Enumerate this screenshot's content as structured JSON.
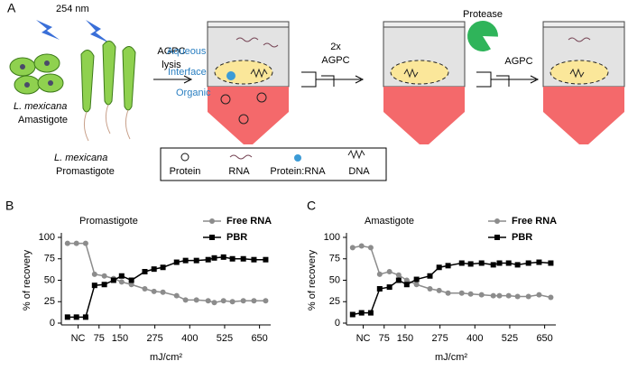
{
  "panels": {
    "a": "A",
    "b": "B",
    "c": "C"
  },
  "diagram": {
    "wavelength": "254 nm",
    "species": "L. mexicana",
    "amastigote": "Amastigote",
    "promastigote": "Promastigote",
    "lysis_1": "AGPC",
    "lysis_2": "lysis",
    "aqueous": "Aqueous",
    "interface": "Interface",
    "organic": "Organic",
    "wash_1": "2x",
    "wash_2": "AGPC",
    "protease": "Protease",
    "final": "AGPC",
    "legend": {
      "protein": "Protein",
      "rna": "RNA",
      "protein_rna": "Protein:RNA",
      "dna": "DNA"
    }
  },
  "chart_data": [
    {
      "type": "scatter",
      "title": "Promastigote",
      "x_label": "mJ/cm²",
      "y_label": "% of recovery",
      "xlim": [
        -60,
        690
      ],
      "ylim": [
        0,
        100
      ],
      "xticks": [
        {
          "value": 0,
          "label": "NC"
        },
        75,
        150,
        275,
        400,
        525,
        650
      ],
      "yticks": [
        0,
        25,
        50,
        75,
        100
      ],
      "legend": "top-right",
      "series": [
        {
          "name": "Free RNA",
          "color": "#8c8c8c",
          "marker": "circle",
          "x": [
            -38,
            -6,
            27,
            59,
            94,
            127,
            156,
            191,
            239,
            272,
            304,
            353,
            385,
            424,
            466,
            488,
            521,
            553,
            592,
            630,
            672
          ],
          "values": [
            93,
            93,
            93,
            57,
            55,
            52,
            48,
            45,
            40,
            37,
            36,
            32,
            27,
            27,
            26,
            24,
            26,
            25,
            26,
            26,
            26
          ]
        },
        {
          "name": "PBR",
          "color": "#000000",
          "marker": "square",
          "x": [
            -38,
            -6,
            27,
            59,
            94,
            127,
            156,
            191,
            239,
            272,
            304,
            353,
            385,
            424,
            466,
            488,
            521,
            553,
            592,
            630,
            672
          ],
          "values": [
            7,
            7,
            7,
            44,
            45,
            50,
            55,
            50,
            60,
            63,
            65,
            71,
            73,
            73,
            74,
            76,
            77,
            75,
            75,
            74,
            74
          ]
        }
      ]
    },
    {
      "type": "scatter",
      "title": "Amastigote",
      "x_label": "mJ/cm²",
      "y_label": "% of recovery",
      "xlim": [
        -60,
        690
      ],
      "ylim": [
        0,
        100
      ],
      "xticks": [
        {
          "value": 0,
          "label": "NC"
        },
        75,
        150,
        275,
        400,
        525,
        650
      ],
      "yticks": [
        0,
        25,
        50,
        75,
        100
      ],
      "legend": "top-right",
      "series": [
        {
          "name": "Free RNA",
          "color": "#8c8c8c",
          "marker": "circle",
          "x": [
            -38,
            -6,
            27,
            59,
            94,
            127,
            156,
            191,
            239,
            272,
            304,
            353,
            385,
            424,
            466,
            488,
            521,
            553,
            592,
            630,
            672
          ],
          "values": [
            88,
            90,
            88,
            57,
            60,
            56,
            50,
            45,
            40,
            38,
            35,
            35,
            34,
            33,
            32,
            32,
            32,
            31,
            31,
            33,
            30
          ]
        },
        {
          "name": "PBR",
          "color": "#000000",
          "marker": "square",
          "x": [
            -38,
            -6,
            27,
            59,
            94,
            127,
            156,
            191,
            239,
            272,
            304,
            353,
            385,
            424,
            466,
            488,
            521,
            553,
            592,
            630,
            672
          ],
          "values": [
            10,
            12,
            12,
            40,
            42,
            50,
            45,
            51,
            55,
            65,
            67,
            70,
            69,
            70,
            68,
            70,
            70,
            68,
            70,
            71,
            70
          ]
        }
      ]
    }
  ]
}
